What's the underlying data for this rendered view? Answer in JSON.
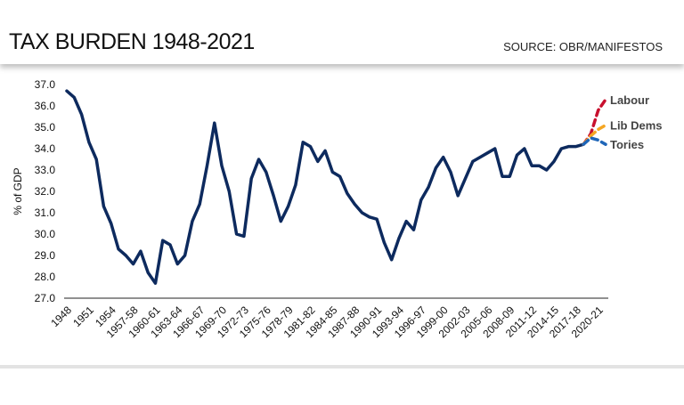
{
  "header": {
    "title": "TAX BURDEN 1948-2021",
    "source": "SOURCE: OBR/MANIFESTOS"
  },
  "colors": {
    "history": "#0d2a5e",
    "labour": "#c8102e",
    "libdems": "#f5a623",
    "tories": "#1f66b8"
  },
  "chart_data": {
    "type": "line",
    "title": "TAX BURDEN 1948-2021",
    "ylabel": "% of GDP",
    "xlabel": "",
    "ylim": [
      27.0,
      37.0
    ],
    "yticks": [
      "27.0",
      "28.0",
      "29.0",
      "30.0",
      "31.0",
      "32.0",
      "33.0",
      "34.0",
      "35.0",
      "36.0",
      "37.0"
    ],
    "xlim": [
      1948,
      2021
    ],
    "xticks": [
      "1948",
      "1951",
      "1954",
      "1957-58",
      "1960-61",
      "1963-64",
      "1966-67",
      "1969-70",
      "1972-73",
      "1975-76",
      "1978-79",
      "1981-82",
      "1984-85",
      "1987-88",
      "1990-91",
      "1993-94",
      "1996-97",
      "1999-00",
      "2002-03",
      "2005-06",
      "2008-09",
      "2011-12",
      "2014-15",
      "2017-18",
      "2020-21"
    ],
    "grid": false,
    "series": [
      {
        "name": "",
        "style": "solid",
        "x": [
          1948,
          1949,
          1950,
          1951,
          1952,
          1953,
          1954,
          1955,
          1956,
          1957,
          1958,
          1959,
          1960,
          1961,
          1962,
          1963,
          1964,
          1965,
          1966,
          1967,
          1968,
          1969,
          1970,
          1971,
          1972,
          1973,
          1974,
          1975,
          1976,
          1977,
          1978,
          1979,
          1980,
          1981,
          1982,
          1983,
          1984,
          1985,
          1986,
          1987,
          1988,
          1989,
          1990,
          1991,
          1992,
          1993,
          1994,
          1995,
          1996,
          1997,
          1998,
          1999,
          2000,
          2001,
          2002,
          2003,
          2004,
          2005,
          2006,
          2007,
          2008,
          2009,
          2010,
          2011,
          2012,
          2013,
          2014,
          2015,
          2016,
          2017,
          2018
        ],
        "y": [
          36.7,
          36.4,
          35.6,
          34.3,
          33.5,
          31.3,
          30.5,
          29.3,
          29.0,
          28.6,
          29.2,
          28.2,
          27.7,
          29.7,
          29.5,
          28.6,
          29.0,
          30.6,
          31.4,
          33.2,
          35.2,
          33.2,
          32.0,
          30.0,
          29.9,
          32.6,
          33.5,
          32.9,
          31.8,
          30.6,
          31.3,
          32.3,
          34.3,
          34.1,
          33.4,
          33.9,
          32.9,
          32.7,
          31.9,
          31.4,
          31.0,
          30.8,
          30.7,
          29.6,
          28.8,
          29.8,
          30.6,
          30.2,
          31.6,
          32.2,
          33.1,
          33.6,
          32.9,
          31.8,
          32.6,
          33.4,
          33.6,
          33.8,
          34.0,
          32.7,
          32.7,
          33.7,
          34.0,
          33.2,
          33.2,
          33.0,
          33.4,
          34.0,
          34.1,
          34.1,
          34.2
        ]
      },
      {
        "name": "Labour",
        "style": "dashed",
        "x": [
          2018,
          2019,
          2020,
          2021
        ],
        "y": [
          34.2,
          34.7,
          35.8,
          36.3
        ]
      },
      {
        "name": "Lib Dems",
        "style": "dashed",
        "x": [
          2018,
          2019,
          2020,
          2021
        ],
        "y": [
          34.2,
          34.6,
          34.9,
          35.1
        ]
      },
      {
        "name": "Tories",
        "style": "dashed",
        "x": [
          2018,
          2019,
          2020,
          2021
        ],
        "y": [
          34.2,
          34.5,
          34.4,
          34.2
        ]
      }
    ]
  }
}
